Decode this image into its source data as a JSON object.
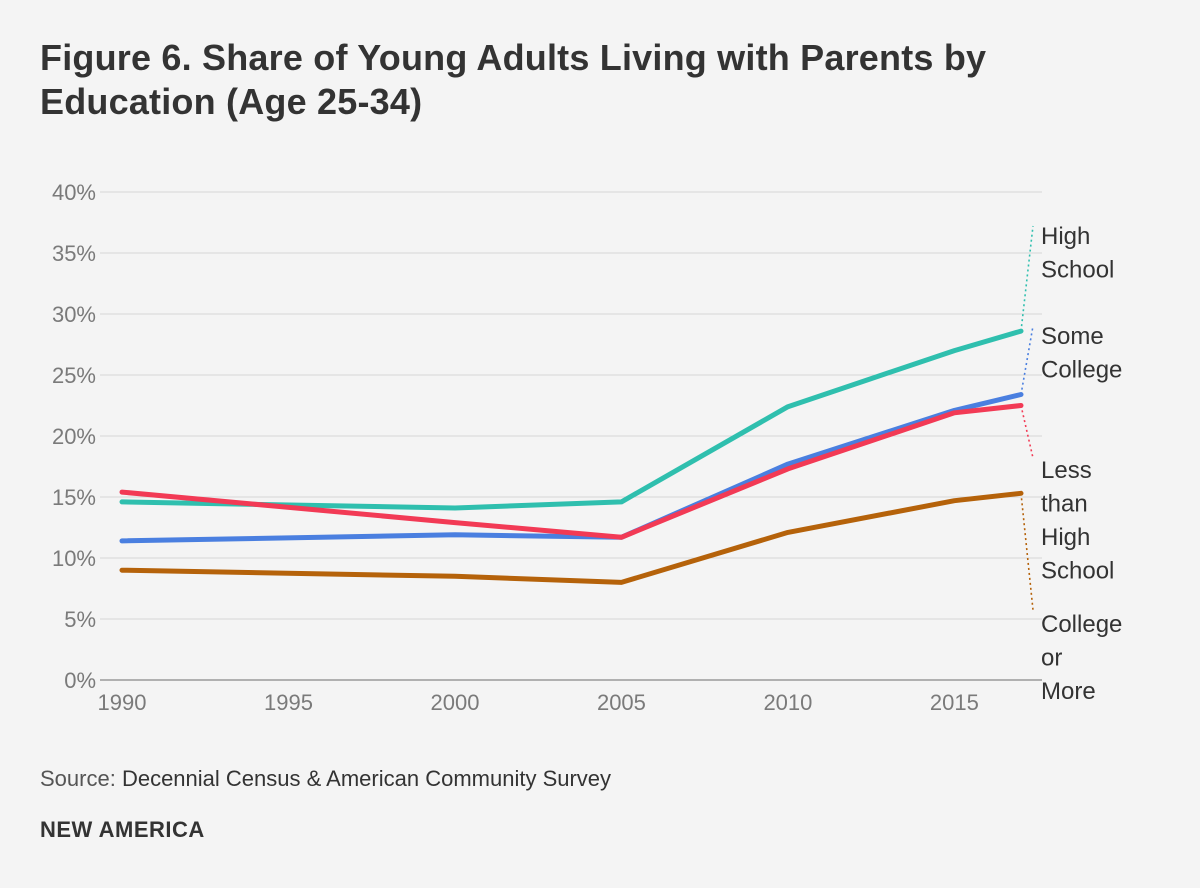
{
  "title": "Figure 6. Share of Young Adults Living with Parents by Education (Age 25-34)",
  "source_prefix": "Source:",
  "source_text": "Decennial Census & American Community Survey",
  "brand": "NEW AMERICA",
  "chart_data": {
    "type": "line",
    "title": "Figure 6. Share of Young Adults Living with Parents by Education (Age 25-34)",
    "xlabel": "",
    "ylabel": "",
    "xlim": [
      1990,
      2017
    ],
    "ylim": [
      0,
      40
    ],
    "x_ticks": [
      1990,
      1995,
      2000,
      2005,
      2010,
      2015
    ],
    "y_ticks": [
      0,
      5,
      10,
      15,
      20,
      25,
      30,
      35,
      40
    ],
    "y_tick_labels": [
      "0%",
      "5%",
      "10%",
      "15%",
      "20%",
      "25%",
      "30%",
      "35%",
      "40%"
    ],
    "grid": true,
    "legend": "right-end labels",
    "series": [
      {
        "name": "High School",
        "label_lines": [
          "High",
          "School"
        ],
        "color": "#2fbfae",
        "x": [
          1990,
          2000,
          2005,
          2010,
          2015,
          2017
        ],
        "values": [
          14.6,
          14.1,
          14.6,
          22.4,
          27.0,
          28.6
        ]
      },
      {
        "name": "Some College",
        "label_lines": [
          "Some",
          "College"
        ],
        "color": "#4a7fe0",
        "x": [
          1990,
          2000,
          2005,
          2010,
          2015,
          2017
        ],
        "values": [
          11.4,
          11.9,
          11.7,
          17.7,
          22.1,
          23.4
        ]
      },
      {
        "name": "Less than High School",
        "label_lines": [
          "Less",
          "than",
          "High",
          "School"
        ],
        "color": "#f23a55",
        "x": [
          1990,
          2000,
          2005,
          2010,
          2015,
          2017
        ],
        "values": [
          15.4,
          12.9,
          11.7,
          17.3,
          21.9,
          22.5
        ]
      },
      {
        "name": "College or More",
        "label_lines": [
          "College",
          "or",
          "More"
        ],
        "color": "#b5620a",
        "x": [
          1990,
          2000,
          2005,
          2010,
          2015,
          2017
        ],
        "values": [
          9.0,
          8.5,
          8.0,
          12.1,
          14.7,
          15.3
        ]
      }
    ]
  }
}
